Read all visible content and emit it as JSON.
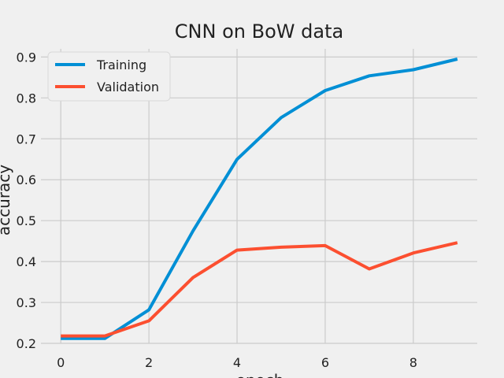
{
  "chart_data": {
    "type": "line",
    "title": "CNN on BoW data",
    "xlabel": "epoch",
    "ylabel": "accuracy",
    "x": [
      0,
      1,
      2,
      3,
      4,
      5,
      6,
      7,
      8,
      9
    ],
    "xlim": [
      -0.45,
      9.45
    ],
    "ylim": [
      0.2,
      0.92
    ],
    "xticks": [
      0,
      2,
      4,
      6,
      8
    ],
    "yticks": [
      0.2,
      0.3,
      0.4,
      0.5,
      0.6,
      0.7,
      0.8,
      0.9
    ],
    "grid": true,
    "legend_position": "upper left",
    "series": [
      {
        "name": "Training",
        "color": "#008fd5",
        "values": [
          0.212,
          0.212,
          0.282,
          0.475,
          0.65,
          0.752,
          0.818,
          0.854,
          0.869,
          0.895
        ]
      },
      {
        "name": "Validation",
        "color": "#fc4f30",
        "values": [
          0.218,
          0.218,
          0.255,
          0.361,
          0.428,
          0.435,
          0.439,
          0.382,
          0.421,
          0.446
        ]
      }
    ]
  }
}
